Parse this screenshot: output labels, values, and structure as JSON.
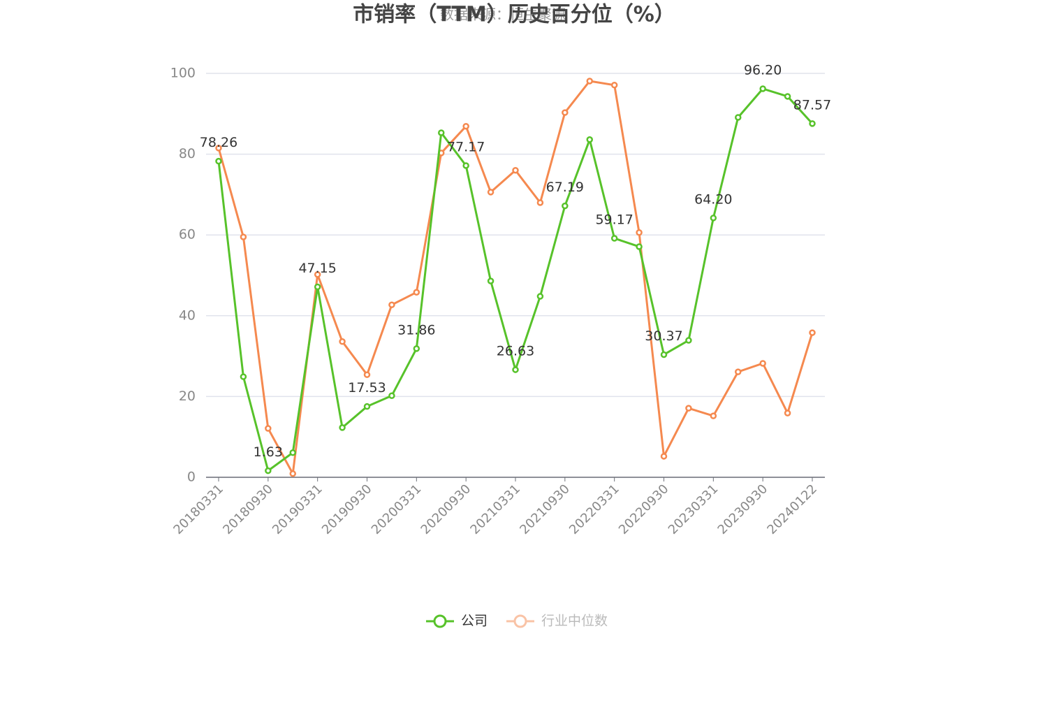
{
  "chart_data": {
    "type": "line",
    "title": "市销率（TTM）历史百分位（%）",
    "subtitle": "数据来源：恒生聚源",
    "categories": [
      "20180331",
      null,
      "20180930",
      null,
      "20190331",
      null,
      "20190930",
      null,
      "20200331",
      null,
      "20200930",
      null,
      "20210331",
      null,
      "20210930",
      null,
      "20220331",
      null,
      "20220930",
      null,
      "20230331",
      null,
      "20230930",
      null,
      "20240122"
    ],
    "series": [
      {
        "name": "公司",
        "color": "#57c22a",
        "values": [
          78.26,
          24.9,
          1.63,
          6.1,
          47.15,
          12.3,
          17.53,
          20.2,
          31.86,
          85.3,
          77.17,
          48.6,
          26.63,
          44.8,
          67.19,
          83.6,
          59.17,
          57.1,
          30.37,
          33.9,
          64.2,
          89.1,
          96.2,
          94.3,
          87.57
        ],
        "value_labels": [
          "78.26",
          null,
          "1.63",
          null,
          "47.15",
          null,
          "17.53",
          null,
          "31.86",
          null,
          "77.17",
          null,
          "26.63",
          null,
          "67.19",
          null,
          "59.17",
          null,
          "30.37",
          null,
          "64.20",
          null,
          "96.20",
          null,
          "87.57"
        ]
      },
      {
        "name": "行业中位数",
        "color": "#f5894f",
        "values": [
          81.5,
          59.5,
          12.1,
          0.9,
          50.2,
          33.6,
          25.4,
          42.7,
          45.8,
          80.3,
          86.9,
          70.6,
          76.0,
          68.0,
          90.3,
          98.1,
          97.1,
          60.6,
          5.2,
          17.1,
          15.2,
          26.1,
          28.2,
          15.9,
          35.8
        ]
      }
    ],
    "ylim": [
      0,
      100
    ],
    "yticks": [
      0,
      20,
      40,
      60,
      80,
      100
    ],
    "grid": true
  }
}
